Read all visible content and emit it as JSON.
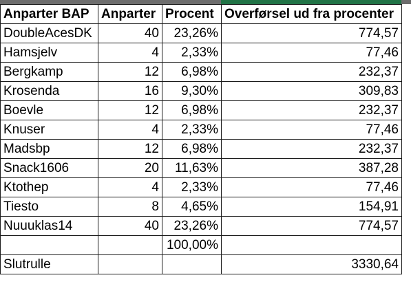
{
  "headers": [
    "Anparter BAP",
    "Anparter",
    "Procent",
    "Overførsel ud fra procenter"
  ],
  "rows": [
    [
      "DoubleAcesDK",
      "40",
      "23,26%",
      "774,57"
    ],
    [
      "Hamsjelv",
      "4",
      "2,33%",
      "77,46"
    ],
    [
      "Bergkamp",
      "12",
      "6,98%",
      "232,37"
    ],
    [
      "Krosenda",
      "16",
      "9,30%",
      "309,83"
    ],
    [
      "Boevle",
      "12",
      "6,98%",
      "232,37"
    ],
    [
      "Knuser",
      "4",
      "2,33%",
      "77,46"
    ],
    [
      "Madsbp",
      "12",
      "6,98%",
      "232,37"
    ],
    [
      "Snack1606",
      "20",
      "11,63%",
      "387,28"
    ],
    [
      "Ktothep",
      "4",
      "2,33%",
      "77,46"
    ],
    [
      "Tiesto",
      "8",
      "4,65%",
      "154,91"
    ],
    [
      "Nuuuklas14",
      "40",
      "23,26%",
      "774,57"
    ],
    [
      "",
      "",
      "100,00%",
      ""
    ],
    [
      "Slutrulle",
      "",
      "",
      "3330,64"
    ]
  ],
  "colors": {
    "selected_header": "#217346",
    "strip": "#6d6d6d",
    "grid": "#1a1a1a"
  }
}
